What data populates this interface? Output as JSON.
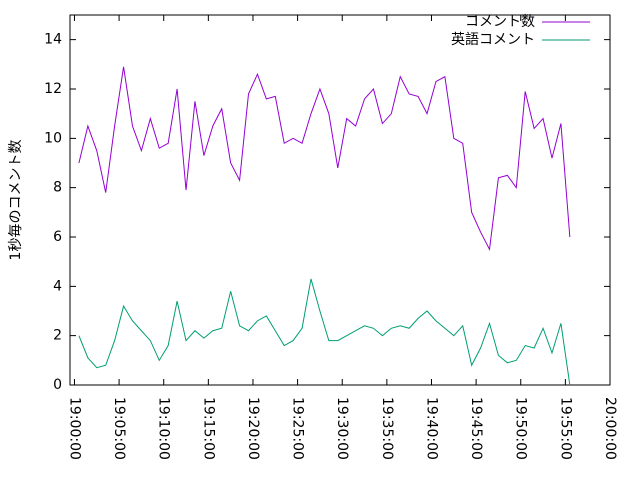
{
  "chart_data": {
    "type": "line",
    "ylabel": "1秒毎のコメント数",
    "x": [
      "19:00:30",
      "19:01:30",
      "19:02:30",
      "19:03:30",
      "19:04:30",
      "19:05:30",
      "19:06:30",
      "19:07:30",
      "19:08:30",
      "19:09:30",
      "19:10:30",
      "19:11:30",
      "19:12:30",
      "19:13:30",
      "19:14:30",
      "19:15:30",
      "19:16:30",
      "19:17:30",
      "19:18:30",
      "19:19:30",
      "19:20:30",
      "19:21:30",
      "19:22:30",
      "19:23:30",
      "19:24:30",
      "19:25:30",
      "19:26:30",
      "19:27:30",
      "19:28:30",
      "19:29:30",
      "19:30:30",
      "19:31:30",
      "19:32:30",
      "19:33:30",
      "19:34:30",
      "19:35:30",
      "19:36:30",
      "19:37:30",
      "19:38:30",
      "19:39:30",
      "19:40:30",
      "19:41:30",
      "19:42:30",
      "19:43:30",
      "19:44:30",
      "19:45:30",
      "19:46:30",
      "19:47:30",
      "19:48:30",
      "19:49:30",
      "19:50:30",
      "19:51:30",
      "19:52:30",
      "19:53:30",
      "19:54:30",
      "19:55:30"
    ],
    "series": [
      {
        "name": "コメント数",
        "color": "#9400d3",
        "values": [
          9.0,
          10.5,
          9.5,
          7.8,
          10.5,
          12.9,
          10.5,
          9.5,
          10.8,
          9.6,
          9.8,
          12.0,
          7.9,
          11.5,
          9.3,
          10.5,
          11.2,
          9.0,
          8.3,
          11.8,
          12.6,
          11.6,
          11.7,
          9.8,
          10.0,
          9.8,
          11.0,
          12.0,
          11.0,
          8.8,
          10.8,
          10.5,
          11.6,
          12.0,
          10.6,
          11.0,
          12.5,
          11.8,
          11.7,
          11.0,
          12.3,
          12.5,
          10.0,
          9.8,
          7.0,
          6.2,
          5.5,
          8.4,
          8.5,
          8.0,
          11.9,
          10.4,
          10.8,
          9.2,
          10.6,
          6.0
        ]
      },
      {
        "name": "英語コメント",
        "color": "#009e73",
        "values": [
          2.0,
          1.1,
          0.7,
          0.8,
          1.8,
          3.2,
          2.6,
          2.2,
          1.8,
          1.0,
          1.6,
          3.4,
          1.8,
          2.2,
          1.9,
          2.2,
          2.3,
          3.8,
          2.4,
          2.2,
          2.6,
          2.8,
          2.2,
          1.6,
          1.8,
          2.3,
          4.3,
          3.0,
          1.8,
          1.8,
          2.0,
          2.2,
          2.4,
          2.3,
          2.0,
          2.3,
          2.4,
          2.3,
          2.7,
          3.0,
          2.6,
          2.3,
          2.0,
          2.4,
          0.8,
          1.5,
          2.5,
          1.2,
          0.9,
          1.0,
          1.6,
          1.5,
          2.3,
          1.3,
          2.5,
          0.0
        ]
      }
    ],
    "xlim": [
      "18:59:30",
      "20:00:00"
    ],
    "xticks": [
      "19:00:00",
      "19:05:00",
      "19:10:00",
      "19:15:00",
      "19:20:00",
      "19:25:00",
      "19:30:00",
      "19:35:00",
      "19:40:00",
      "19:45:00",
      "19:50:00",
      "19:55:00",
      "20:00:00"
    ],
    "ylim": [
      0,
      15
    ],
    "yticks": [
      0,
      2,
      4,
      6,
      8,
      10,
      12,
      14
    ],
    "grid": false,
    "legend": "top-right"
  }
}
